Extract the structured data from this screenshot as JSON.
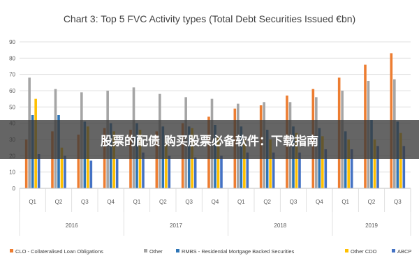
{
  "overlay_banner": "股票的配债 购买股票必备软件：下载指南",
  "colors": {
    "CLO": "#ED7D31",
    "Other": "#A5A5A5",
    "RMBS": "#2E75B6",
    "OtherCDO": "#FFC000",
    "ABCP": "#4472C4",
    "grid": "#D9D9D9",
    "banner_bg": "#3a3a3a"
  },
  "chart_data": {
    "type": "bar",
    "title": "Chart 3: Top 5 FVC Activity types (Total Debt Securities Issued €bn)",
    "xlabel": "",
    "ylabel": "",
    "ylim": [
      0,
      90
    ],
    "yticks": [
      0,
      10,
      20,
      30,
      40,
      50,
      60,
      70,
      80,
      90
    ],
    "grid": true,
    "legend_position": "bottom",
    "categories": [
      "Q1",
      "Q2",
      "Q3",
      "Q4",
      "Q1",
      "Q2",
      "Q3",
      "Q4",
      "Q1",
      "Q2",
      "Q3",
      "Q4",
      "Q1",
      "Q2",
      "Q3"
    ],
    "groups": [
      {
        "label": "2016",
        "count": 4
      },
      {
        "label": "2017",
        "count": 4
      },
      {
        "label": "2018",
        "count": 4
      },
      {
        "label": "2019",
        "count": 3
      }
    ],
    "series": [
      {
        "name": "CLO - Collateralised Loan Obligations",
        "key": "CLO",
        "values": [
          30,
          35,
          33,
          37,
          36,
          35,
          40,
          44,
          49,
          51,
          57,
          61,
          68,
          76,
          83
        ]
      },
      {
        "name": "Other",
        "key": "Other",
        "values": [
          68,
          61,
          59,
          60,
          62,
          58,
          56,
          55,
          52,
          53,
          53,
          56,
          60,
          66,
          67
        ]
      },
      {
        "name": "RMBS - Residential Mortgage Backed Securities",
        "key": "RMBS",
        "values": [
          45,
          45,
          41,
          40,
          40,
          38,
          38,
          39,
          38,
          36,
          38,
          37,
          35,
          42,
          41
        ]
      },
      {
        "name": "Other CDO",
        "key": "OtherCDO",
        "values": [
          55,
          25,
          38,
          35,
          36,
          30,
          37,
          32,
          30,
          30,
          34,
          32,
          30,
          30,
          34
        ]
      },
      {
        "name": "ABCP",
        "key": "ABCP",
        "values": [
          21,
          20,
          17,
          18,
          22,
          20,
          19,
          20,
          22,
          22,
          22,
          24,
          24,
          26,
          26
        ]
      }
    ]
  }
}
